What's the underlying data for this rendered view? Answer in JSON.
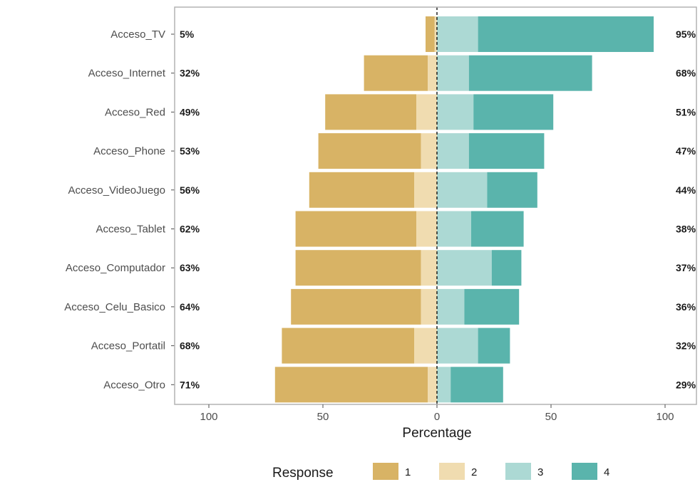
{
  "chart_data": {
    "type": "bar",
    "orientation": "horizontal-diverging",
    "xlabel": "Percentage",
    "xticks": [
      100,
      50,
      0,
      50,
      100
    ],
    "xlim": [
      -100,
      100
    ],
    "grid": false,
    "legend": {
      "title": "Response",
      "placement": "bottom",
      "entries": [
        "1",
        "2",
        "3",
        "4"
      ]
    },
    "colors": {
      "1": "#d8b365",
      "2": "#f0dcb0",
      "3": "#acd9d4",
      "4": "#5ab4ac"
    },
    "categories": [
      "Acceso_TV",
      "Acceso_Internet",
      "Acceso_Red",
      "Acceso_Phone",
      "Acceso_VideoJuego",
      "Acceso_Tablet",
      "Acceso_Computador",
      "Acceso_Celu_Basico",
      "Acceso_Portatil",
      "Acceso_Otro"
    ],
    "series": [
      {
        "name": "1",
        "values": [
          4,
          28,
          40,
          45,
          46,
          53,
          55,
          57,
          58,
          67
        ]
      },
      {
        "name": "2",
        "values": [
          1,
          4,
          9,
          7,
          10,
          9,
          7,
          7,
          10,
          4
        ]
      },
      {
        "name": "3",
        "values": [
          18,
          14,
          16,
          14,
          22,
          15,
          24,
          12,
          18,
          6
        ]
      },
      {
        "name": "4",
        "values": [
          77,
          54,
          35,
          33,
          22,
          23,
          13,
          24,
          14,
          23
        ]
      }
    ],
    "left_labels": [
      "5%",
      "32%",
      "49%",
      "53%",
      "56%",
      "62%",
      "63%",
      "64%",
      "68%",
      "71%"
    ],
    "right_labels": [
      "95%",
      "68%",
      "51%",
      "47%",
      "44%",
      "38%",
      "37%",
      "36%",
      "32%",
      "29%"
    ]
  }
}
